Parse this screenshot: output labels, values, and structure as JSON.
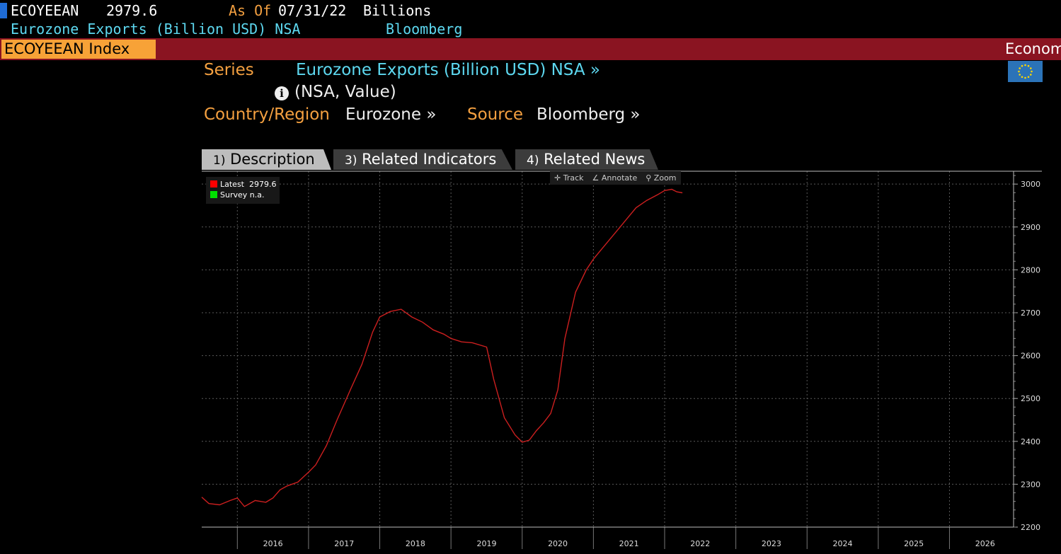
{
  "header": {
    "ticker": "ECOYEEAN",
    "price": "2979.6",
    "as_of_label": "As Of",
    "as_of_date": "07/31/22",
    "units": "Billions",
    "subtitle": "Eurozone Exports (Billion USD) NSA",
    "source": "Bloomberg"
  },
  "security_bar": {
    "security": "ECOYEEAN Index",
    "right_label": "Econom"
  },
  "info": {
    "series_label": "Series",
    "series_value": "Eurozone Exports (Billion USD) NSA »",
    "info_icon": "info-icon",
    "nsa_value": "(NSA, Value)",
    "country_label": "Country/Region",
    "country_value": "Eurozone »",
    "source_label": "Source",
    "source_value": "Bloomberg »"
  },
  "tabs": [
    {
      "num": "1)",
      "label": "Description"
    },
    {
      "num": "3)",
      "label": "Related Indicators"
    },
    {
      "num": "4)",
      "label": "Related News"
    }
  ],
  "chart_tools": {
    "track": "Track",
    "annotate": "Annotate",
    "zoom": "Zoom"
  },
  "legend": {
    "latest_label": "Latest",
    "latest_value": "2979.6",
    "survey_label": "Survey",
    "survey_value": "n.a.",
    "latest_color": "#ff0000",
    "survey_color": "#00e000"
  },
  "colors": {
    "line": "#cc1f1f",
    "orange": "#f4a040",
    "cyan": "#5dd8f0",
    "redbar": "#8a1421",
    "security": "#f7a237"
  },
  "chart_data": {
    "type": "line",
    "title": "",
    "xlabel": "",
    "ylabel": "",
    "ylim": [
      2200,
      3030
    ],
    "xlim": [
      2015.5,
      2026.9
    ],
    "yticks": [
      2200,
      2300,
      2400,
      2500,
      2600,
      2700,
      2800,
      2900,
      3000
    ],
    "xticks": [
      "2016",
      "2017",
      "2018",
      "2019",
      "2020",
      "2021",
      "2022",
      "2023",
      "2024",
      "2025",
      "2026"
    ],
    "grid": true,
    "legend_position": "top-left",
    "series": [
      {
        "name": "Latest",
        "x": [
          2015.5,
          2015.6,
          2015.75,
          2015.9,
          2016.0,
          2016.1,
          2016.25,
          2016.4,
          2016.5,
          2016.6,
          2016.7,
          2016.85,
          2017.0,
          2017.1,
          2017.25,
          2017.4,
          2017.6,
          2017.75,
          2017.9,
          2018.0,
          2018.15,
          2018.3,
          2018.45,
          2018.6,
          2018.75,
          2018.9,
          2019.0,
          2019.15,
          2019.3,
          2019.5,
          2019.6,
          2019.75,
          2019.9,
          2020.0,
          2020.1,
          2020.2,
          2020.3,
          2020.4,
          2020.5,
          2020.6,
          2020.75,
          2020.9,
          2021.0,
          2021.1,
          2021.25,
          2021.4,
          2021.5,
          2021.6,
          2021.75,
          2021.9,
          2022.0,
          2022.1,
          2022.17,
          2022.25
        ],
        "y": [
          2270,
          2255,
          2252,
          2262,
          2268,
          2248,
          2262,
          2258,
          2268,
          2287,
          2296,
          2305,
          2328,
          2345,
          2390,
          2450,
          2525,
          2580,
          2655,
          2690,
          2703,
          2708,
          2690,
          2678,
          2660,
          2650,
          2640,
          2632,
          2630,
          2620,
          2545,
          2455,
          2415,
          2398,
          2403,
          2425,
          2443,
          2465,
          2520,
          2640,
          2748,
          2800,
          2825,
          2845,
          2875,
          2905,
          2925,
          2945,
          2962,
          2975,
          2985,
          2988,
          2982,
          2979.6
        ]
      }
    ]
  }
}
